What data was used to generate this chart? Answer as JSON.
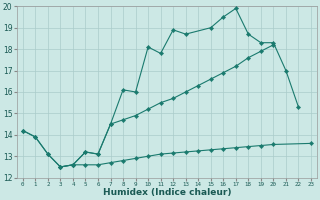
{
  "background_color": "#cce8e5",
  "grid_color": "#aaccca",
  "line_color": "#1a7a6e",
  "xlabel": "Humidex (Indice chaleur)",
  "xlim_min": -0.5,
  "xlim_max": 23.5,
  "ylim_min": 12,
  "ylim_max": 20,
  "xticks": [
    0,
    1,
    2,
    3,
    4,
    5,
    6,
    7,
    8,
    9,
    10,
    11,
    12,
    13,
    14,
    15,
    16,
    17,
    18,
    19,
    20,
    21,
    22,
    23
  ],
  "yticks": [
    12,
    13,
    14,
    15,
    16,
    17,
    18,
    19,
    20
  ],
  "line_main_x": [
    0,
    1,
    2,
    3,
    4,
    5,
    6,
    7,
    8,
    9,
    10,
    11,
    12,
    13,
    15,
    16,
    17,
    18,
    19,
    20,
    21,
    22
  ],
  "line_main_y": [
    14.2,
    13.9,
    13.1,
    12.5,
    12.6,
    13.2,
    13.1,
    14.5,
    16.1,
    16.0,
    18.1,
    17.8,
    18.9,
    18.7,
    19.0,
    19.5,
    19.9,
    18.7,
    18.3,
    18.3,
    17.0,
    15.3
  ],
  "line_mid_x": [
    0,
    1,
    2,
    3,
    4,
    5,
    6,
    7,
    8,
    9,
    10,
    11,
    12,
    13,
    14,
    15,
    16,
    17,
    18,
    19,
    20
  ],
  "line_mid_y": [
    14.2,
    13.9,
    13.1,
    12.5,
    12.6,
    13.2,
    13.1,
    14.5,
    14.7,
    14.9,
    15.2,
    15.5,
    15.7,
    16.0,
    16.3,
    16.6,
    16.9,
    17.2,
    17.6,
    17.9,
    18.2
  ],
  "line_low_x": [
    3,
    4,
    5,
    6,
    7,
    8,
    9,
    10,
    11,
    12,
    13,
    14,
    15,
    16,
    17,
    18,
    19,
    20,
    23
  ],
  "line_low_y": [
    12.5,
    12.6,
    12.6,
    12.6,
    12.7,
    12.8,
    12.9,
    13.0,
    13.1,
    13.15,
    13.2,
    13.25,
    13.3,
    13.35,
    13.4,
    13.45,
    13.5,
    13.55,
    13.6
  ]
}
